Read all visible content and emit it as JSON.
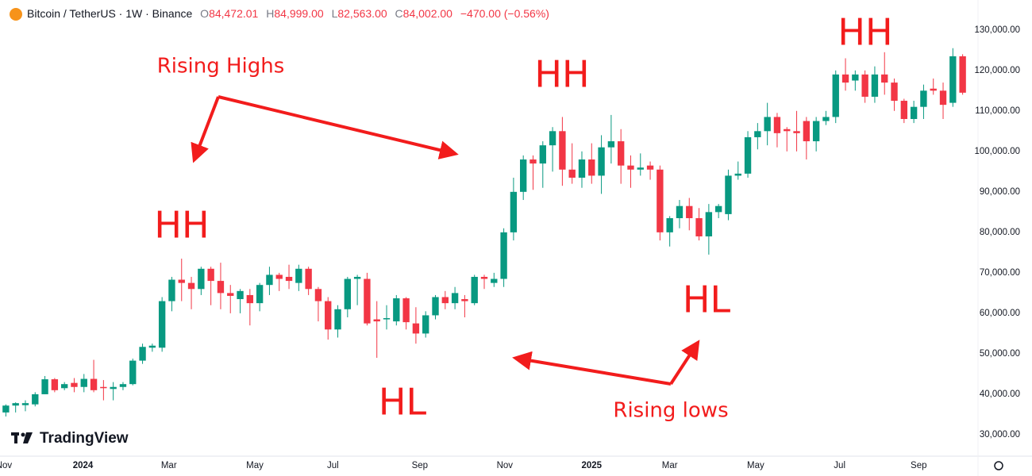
{
  "header": {
    "symbol": "Bitcoin / TetherUS · 1W · Binance",
    "fields": [
      {
        "key": "O",
        "value": "84,472.01"
      },
      {
        "key": "H",
        "value": "84,999.00"
      },
      {
        "key": "L",
        "value": "82,563.00"
      },
      {
        "key": "C",
        "value": "84,002.00"
      }
    ],
    "change": "−470.00 (−0.56%)"
  },
  "watermark": "TradingView",
  "chart_data": {
    "type": "candlestick",
    "up_color": "#089981",
    "down_color": "#f23645",
    "open": [
      35500,
      37200,
      37300,
      37500,
      40000,
      43700,
      41500,
      42800,
      41800,
      43800,
      41800,
      41300,
      41800,
      42500,
      48300,
      51500,
      51500,
      63000,
      68300,
      67500,
      66000,
      71000,
      68000,
      65000,
      63500,
      64500,
      62500,
      67000,
      69500,
      69000,
      67500,
      71000,
      66000,
      63000,
      56000,
      61000,
      68500,
      68500,
      58500,
      58500,
      58000,
      63700,
      57500,
      55000,
      59500,
      64000,
      62500,
      63500,
      62500,
      69000,
      67500,
      68500,
      80000,
      90000,
      98000,
      97000,
      101500,
      105000,
      95500,
      93500,
      98000,
      94000,
      101000,
      102500,
      96500,
      95500,
      96500,
      95500,
      80000,
      83500,
      86500,
      83500,
      79000,
      85000,
      84500,
      94000,
      94500,
      103500,
      105000,
      108500,
      105500,
      105000,
      107500,
      102500,
      107500,
      108500,
      119000,
      117500,
      119000,
      113500,
      119000,
      117000,
      112500,
      108000,
      111000,
      115500,
      115000,
      112000,
      123500
    ],
    "high": [
      37500,
      38000,
      38500,
      40500,
      44500,
      44000,
      43000,
      44000,
      45000,
      48500,
      43500,
      43000,
      43000,
      48800,
      52500,
      52500,
      64000,
      69000,
      73500,
      69000,
      71500,
      71500,
      72500,
      67000,
      66000,
      66000,
      67500,
      71500,
      70000,
      72000,
      72000,
      71500,
      66500,
      64000,
      62000,
      69000,
      69500,
      70000,
      63000,
      62000,
      64500,
      64000,
      61500,
      60500,
      64500,
      65500,
      66500,
      64500,
      69500,
      69500,
      70000,
      81000,
      93500,
      99000,
      99000,
      102500,
      106000,
      108500,
      102000,
      100000,
      102000,
      104000,
      109000,
      105500,
      99000,
      99500,
      97500,
      96500,
      84000,
      88000,
      88500,
      86000,
      87000,
      87000,
      95500,
      97500,
      105000,
      107000,
      112000,
      109500,
      106000,
      110000,
      108500,
      108500,
      110000,
      120000,
      123000,
      120000,
      120000,
      121000,
      124500,
      118000,
      113000,
      112500,
      116500,
      118000,
      117000,
      125500,
      124000
    ],
    "low": [
      34500,
      35500,
      35800,
      37000,
      40000,
      40500,
      41000,
      40500,
      40500,
      40500,
      38500,
      38500,
      41000,
      42200,
      47500,
      50500,
      50500,
      60500,
      63000,
      61000,
      64500,
      62000,
      61000,
      60000,
      60000,
      57000,
      60500,
      64500,
      65500,
      66000,
      65500,
      64500,
      58000,
      53500,
      54000,
      59000,
      62000,
      57000,
      49000,
      56000,
      57000,
      56000,
      52500,
      54000,
      58500,
      61000,
      61000,
      59000,
      62000,
      66000,
      66500,
      66500,
      78000,
      88000,
      90500,
      91000,
      95000,
      91500,
      92000,
      91000,
      92000,
      89500,
      97000,
      92000,
      91000,
      94000,
      93000,
      78000,
      76500,
      81000,
      80500,
      78000,
      74500,
      83500,
      83000,
      93000,
      93500,
      100500,
      101500,
      101000,
      100000,
      100000,
      98000,
      100000,
      106500,
      107000,
      115000,
      115000,
      112000,
      112000,
      114000,
      110000,
      107000,
      107000,
      108000,
      114000,
      108000,
      111000,
      114000
    ],
    "close": [
      37200,
      37800,
      37800,
      40000,
      43700,
      41000,
      42500,
      41800,
      43800,
      41000,
      41500,
      41800,
      42500,
      48300,
      51700,
      52000,
      63000,
      68300,
      67500,
      66000,
      71000,
      68000,
      65000,
      64300,
      65500,
      62500,
      67000,
      69500,
      68500,
      68000,
      71000,
      66000,
      63000,
      56000,
      61000,
      68500,
      69000,
      57500,
      58000,
      58800,
      63700,
      57800,
      55000,
      59500,
      64000,
      62500,
      65000,
      63000,
      69000,
      68500,
      68500,
      80000,
      90000,
      98000,
      97000,
      101500,
      105000,
      95500,
      93500,
      98000,
      94000,
      101000,
      102500,
      96500,
      95500,
      96000,
      95500,
      80000,
      83500,
      86500,
      83500,
      79000,
      85000,
      86500,
      94000,
      94500,
      103500,
      105000,
      108500,
      104500,
      105000,
      104500,
      102500,
      107500,
      108500,
      119000,
      117000,
      119000,
      113500,
      119000,
      117000,
      112500,
      108000,
      111000,
      115000,
      115000,
      111500,
      123500,
      114500
    ],
    "xlim": [
      -0.6,
      98.6
    ],
    "xticks": [
      {
        "value": -0.2,
        "label": "Nov"
      },
      {
        "value": 7.9,
        "label": "2024"
      },
      {
        "value": 16.7,
        "label": "Mar"
      },
      {
        "value": 25.5,
        "label": "May"
      },
      {
        "value": 33.5,
        "label": "Jul"
      },
      {
        "value": 42.4,
        "label": "Sep"
      },
      {
        "value": 51.1,
        "label": "Nov"
      },
      {
        "value": 60,
        "label": "2025"
      },
      {
        "value": 68,
        "label": "Mar"
      },
      {
        "value": 76.8,
        "label": "May"
      },
      {
        "value": 85.4,
        "label": "Jul"
      },
      {
        "value": 93.5,
        "label": "Sep"
      }
    ],
    "ylim": [
      24700,
      137400
    ],
    "yticks": [
      {
        "value": 30000,
        "label": "30,000.00"
      },
      {
        "value": 40000,
        "label": "40,000.00"
      },
      {
        "value": 50000,
        "label": "50,000.00"
      },
      {
        "value": 60000,
        "label": "60,000.00"
      },
      {
        "value": 70000,
        "label": "70,000.00"
      },
      {
        "value": 80000,
        "label": "80,000.00"
      },
      {
        "value": 90000,
        "label": "90,000.00"
      },
      {
        "value": 100000,
        "label": "100,000.00"
      },
      {
        "value": 110000,
        "label": "110,000.00"
      },
      {
        "value": 120000,
        "label": "120,000.00"
      },
      {
        "value": 130000,
        "label": "130,000.00"
      }
    ],
    "grid": false,
    "annotations": [
      "Rising Highs",
      "HH",
      "HH",
      "HH",
      "HL",
      "HL",
      "Rising lows"
    ]
  }
}
